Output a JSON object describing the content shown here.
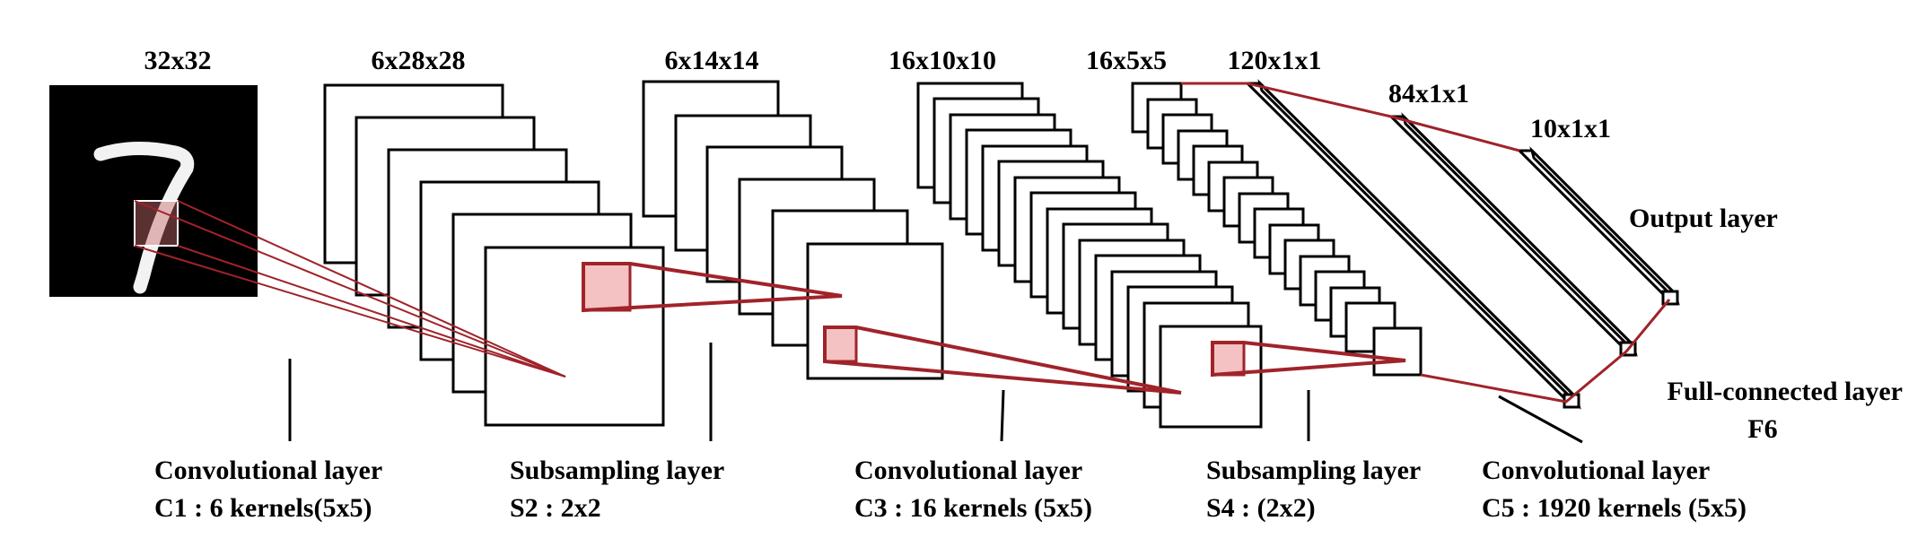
{
  "colors": {
    "connection": "#a0232a",
    "highlight": "#f4c2c2",
    "outline": "#000000",
    "input_bg": "#000000"
  },
  "input": {
    "dims": "32x32"
  },
  "layers": {
    "c1": {
      "dims": "6x28x28",
      "line1": "Convolutional layer",
      "line2": "C1 : 6 kernels(5x5)"
    },
    "s2": {
      "dims": "6x14x14",
      "line1": "Subsampling layer",
      "line2": "S2 : 2x2"
    },
    "c3": {
      "dims": "16x10x10",
      "line1": "Convolutional layer",
      "line2": "C3 : 16 kernels (5x5)"
    },
    "s4": {
      "dims": "16x5x5",
      "line1": "Subsampling layer",
      "line2": "S4 : (2x2)"
    },
    "c5": {
      "dims": "120x1x1",
      "line1": "Convolutional layer",
      "line2": "C5 : 1920 kernels (5x5)"
    },
    "f6": {
      "dims": "84x1x1",
      "line1": "Full-connected layer",
      "line2": "F6"
    },
    "output": {
      "dims": "10x1x1",
      "line1": "Output layer"
    }
  }
}
